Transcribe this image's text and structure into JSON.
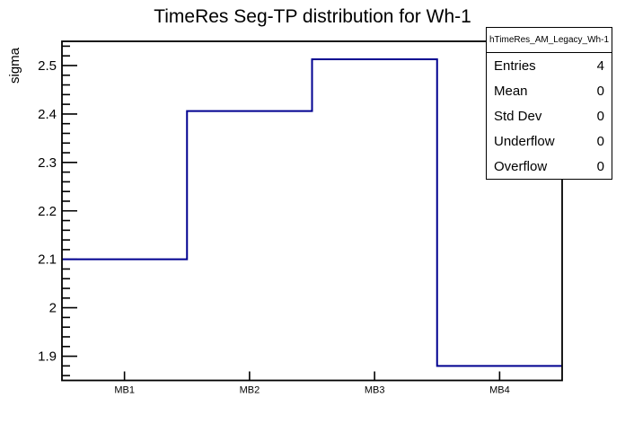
{
  "chart_data": {
    "type": "bar",
    "subtype": "root-step-histogram",
    "title": "TimeRes Seg-TP distribution for Wh-1",
    "xlabel": "",
    "ylabel": "sigma",
    "categories": [
      "MB1",
      "MB2",
      "MB3",
      "MB4"
    ],
    "values": [
      2.1,
      2.406,
      2.513,
      1.88
    ],
    "ylim": [
      1.85,
      2.55
    ],
    "yticks_major": [
      1.9,
      2.0,
      2.1,
      2.2,
      2.3,
      2.4,
      2.5
    ],
    "ytick_labels": [
      "1.9",
      "2",
      "2.1",
      "2.2",
      "2.3",
      "2.4",
      "2.5"
    ],
    "minor_tick_step": 0.02,
    "grid": false,
    "legend_position": "none",
    "line_color": "#000090",
    "frame_color": "#000000"
  },
  "stats_box": {
    "header": "hTimeRes_AM_Legacy_Wh-1",
    "rows": [
      {
        "label": "Entries",
        "value": "4"
      },
      {
        "label": "Mean",
        "value": "0"
      },
      {
        "label": "Std Dev",
        "value": "0"
      },
      {
        "label": "Underflow",
        "value": "0"
      },
      {
        "label": "Overflow",
        "value": "0"
      }
    ]
  }
}
